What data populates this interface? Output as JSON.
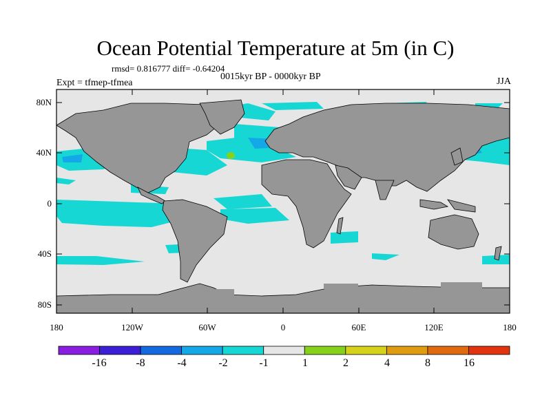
{
  "title": "Ocean Potential Temperature at 5m (in C)",
  "stats_line": "rmsd= 0.816777  diff= -0.64204",
  "period": "0015kyr BP - 0000kyr BP",
  "experiment": "Expt = tfmep-tfmea",
  "season": "JJA",
  "y_ticks": [
    "80N",
    "40N",
    "0",
    "40S",
    "80S"
  ],
  "x_ticks": [
    "180",
    "120W",
    "60W",
    "0",
    "60E",
    "120E",
    "180"
  ],
  "colorbar": {
    "colors": [
      "#8a1ee0",
      "#3b1fd6",
      "#1569e0",
      "#15a8e8",
      "#16d7d3",
      "#e6e6e6",
      "#86d21a",
      "#d6d21a",
      "#e09c10",
      "#e06a10",
      "#e0330e"
    ],
    "labels": [
      "-16",
      "-8",
      "-4",
      "-2",
      "-1",
      "1",
      "2",
      "4",
      "8",
      "16"
    ]
  },
  "map_colors": {
    "ocean": "#e6e6e6",
    "land": "#969696",
    "cool": "#16d7d3",
    "colder": "#15a8e8",
    "coldest": "#1569e0",
    "warm": "#86d21a"
  }
}
